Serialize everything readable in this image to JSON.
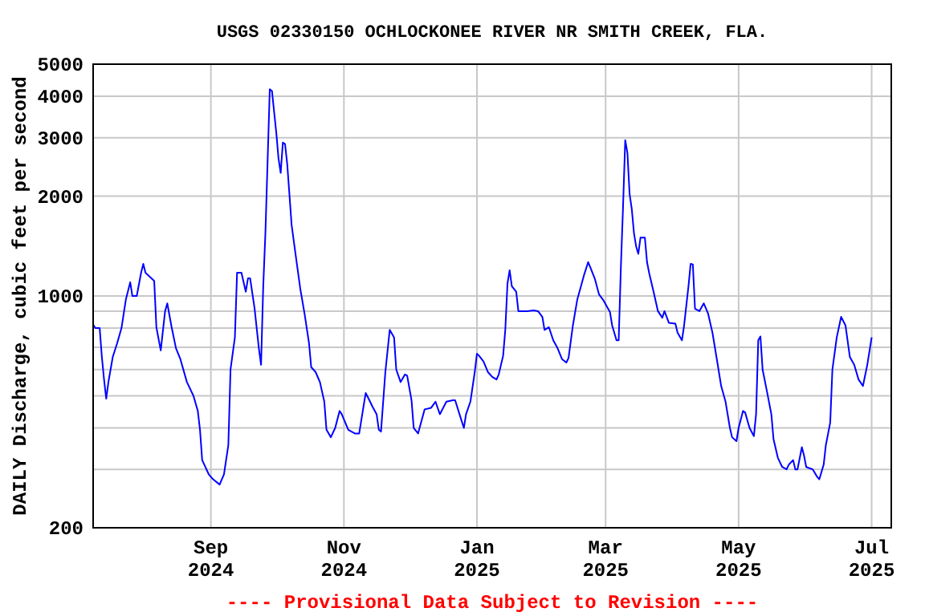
{
  "chart_data": {
    "type": "line",
    "title": "USGS 02330150 OCHLOCKONEE RIVER NR SMITH CREEK, FLA.",
    "ylabel": "DAILY Discharge, cubic feet per second",
    "annotations": [
      "---- Provisional Data Subject to Revision ----"
    ],
    "log": "y",
    "grid": true,
    "marker": "none",
    "line_style": "solid",
    "xlim": [
      "2024-07-09",
      "2025-07-10"
    ],
    "xticks": [
      {
        "value": "2024-09-01",
        "label": "Sep\n2024"
      },
      {
        "value": "2024-11-01",
        "label": "Nov\n2024"
      },
      {
        "value": "2025-01-01",
        "label": "Jan\n2025"
      },
      {
        "value": "2025-03-01",
        "label": "Mar\n2025"
      },
      {
        "value": "2025-05-01",
        "label": "May\n2025"
      },
      {
        "value": "2025-07-01",
        "label": "Jul\n2025"
      }
    ],
    "ylim": [
      200,
      5000
    ],
    "yticks": [
      200,
      {
        "value": 300,
        "label": null
      },
      {
        "value": 400,
        "label": null
      },
      {
        "value": 500,
        "label": null
      },
      {
        "value": 600,
        "label": null
      },
      {
        "value": 700,
        "label": null
      },
      {
        "value": 800,
        "label": null
      },
      {
        "value": 900,
        "label": null
      },
      1000,
      2000,
      3000,
      4000,
      5000
    ],
    "series": [
      {
        "color": "#0000ff",
        "x": [
          "2024-07-09",
          "2024-07-10",
          "2024-07-12",
          "2024-07-13",
          "2024-07-14",
          "2024-07-15",
          "2024-07-16",
          "2024-07-18",
          "2024-07-20",
          "2024-07-22",
          "2024-07-24",
          "2024-07-26",
          "2024-07-27",
          "2024-07-29",
          "2024-07-31",
          "2024-08-01",
          "2024-08-02",
          "2024-08-06",
          "2024-08-07",
          "2024-08-09",
          "2024-08-11",
          "2024-08-12",
          "2024-08-14",
          "2024-08-16",
          "2024-08-18",
          "2024-08-21",
          "2024-08-24",
          "2024-08-26",
          "2024-08-27",
          "2024-08-28",
          "2024-08-31",
          "2024-09-02",
          "2024-09-05",
          "2024-09-07",
          "2024-09-09",
          "2024-09-10",
          "2024-09-12",
          "2024-09-13",
          "2024-09-15",
          "2024-09-17",
          "2024-09-18",
          "2024-09-19",
          "2024-09-21",
          "2024-09-23",
          "2024-09-24",
          "2024-09-25",
          "2024-09-26",
          "2024-09-27",
          "2024-09-28",
          "2024-09-29",
          "2024-10-01",
          "2024-10-02",
          "2024-10-03",
          "2024-10-04",
          "2024-10-05",
          "2024-10-06",
          "2024-10-07",
          "2024-10-08",
          "2024-10-10",
          "2024-10-12",
          "2024-10-14",
          "2024-10-16",
          "2024-10-17",
          "2024-10-19",
          "2024-10-21",
          "2024-10-23",
          "2024-10-24",
          "2024-10-26",
          "2024-10-28",
          "2024-10-30",
          "2024-10-31",
          "2024-11-03",
          "2024-11-06",
          "2024-11-08",
          "2024-11-10",
          "2024-11-11",
          "2024-11-13",
          "2024-11-14",
          "2024-11-16",
          "2024-11-17",
          "2024-11-18",
          "2024-11-20",
          "2024-11-22",
          "2024-11-24",
          "2024-11-25",
          "2024-11-27",
          "2024-11-29",
          "2024-11-30",
          "2024-12-02",
          "2024-12-03",
          "2024-12-05",
          "2024-12-07",
          "2024-12-08",
          "2024-12-11",
          "2024-12-13",
          "2024-12-15",
          "2024-12-18",
          "2024-12-21",
          "2024-12-22",
          "2024-12-24",
          "2024-12-26",
          "2024-12-27",
          "2024-12-29",
          "2024-12-31",
          "2025-01-01",
          "2025-01-02",
          "2025-01-04",
          "2025-01-06",
          "2025-01-08",
          "2025-01-10",
          "2025-01-11",
          "2025-01-13",
          "2025-01-14",
          "2025-01-15",
          "2025-01-16",
          "2025-01-17",
          "2025-01-19",
          "2025-01-20",
          "2025-01-22",
          "2025-01-24",
          "2025-01-27",
          "2025-01-29",
          "2025-01-31",
          "2025-02-01",
          "2025-02-03",
          "2025-02-05",
          "2025-02-07",
          "2025-02-09",
          "2025-02-11",
          "2025-02-12",
          "2025-02-14",
          "2025-02-16",
          "2025-02-17",
          "2025-02-19",
          "2025-02-21",
          "2025-02-22",
          "2025-02-24",
          "2025-02-26",
          "2025-02-28",
          "2025-03-03",
          "2025-03-04",
          "2025-03-06",
          "2025-03-07",
          "2025-03-08",
          "2025-03-09",
          "2025-03-10",
          "2025-03-11",
          "2025-03-12",
          "2025-03-13",
          "2025-03-14",
          "2025-03-15",
          "2025-03-16",
          "2025-03-17",
          "2025-03-19",
          "2025-03-20",
          "2025-03-21",
          "2025-03-23",
          "2025-03-25",
          "2025-03-27",
          "2025-03-28",
          "2025-03-30",
          "2025-04-02",
          "2025-04-03",
          "2025-04-05",
          "2025-04-06",
          "2025-04-08",
          "2025-04-09",
          "2025-04-10",
          "2025-04-11",
          "2025-04-13",
          "2025-04-15",
          "2025-04-17",
          "2025-04-19",
          "2025-04-21",
          "2025-04-23",
          "2025-04-25",
          "2025-04-27",
          "2025-04-28",
          "2025-04-30",
          "2025-05-01",
          "2025-05-03",
          "2025-05-04",
          "2025-05-06",
          "2025-05-08",
          "2025-05-09",
          "2025-05-10",
          "2025-05-11",
          "2025-05-12",
          "2025-05-14",
          "2025-05-16",
          "2025-05-17",
          "2025-05-19",
          "2025-05-21",
          "2025-05-23",
          "2025-05-24",
          "2025-05-26",
          "2025-05-27",
          "2025-05-28",
          "2025-05-30",
          "2025-05-31",
          "2025-06-01",
          "2025-06-04",
          "2025-06-06",
          "2025-06-07",
          "2025-06-09",
          "2025-06-10",
          "2025-06-12",
          "2025-06-13",
          "2025-06-15",
          "2025-06-17",
          "2025-06-19",
          "2025-06-21",
          "2025-06-23",
          "2025-06-25",
          "2025-06-27",
          "2025-06-29",
          "2025-07-01"
        ],
        "values": [
          820,
          800,
          800,
          655,
          560,
          490,
          550,
          655,
          720,
          800,
          975,
          1100,
          1000,
          1000,
          1175,
          1250,
          1175,
          1110,
          805,
          685,
          900,
          950,
          805,
          695,
          645,
          550,
          500,
          450,
          395,
          320,
          290,
          280,
          270,
          290,
          355,
          600,
          750,
          1175,
          1175,
          1030,
          1130,
          1130,
          920,
          695,
          620,
          1070,
          1550,
          2550,
          4200,
          4150,
          3100,
          2600,
          2350,
          2900,
          2870,
          2500,
          2030,
          1640,
          1310,
          1050,
          880,
          720,
          610,
          590,
          550,
          480,
          395,
          375,
          400,
          450,
          440,
          395,
          385,
          385,
          465,
          510,
          480,
          465,
          440,
          395,
          390,
          590,
          790,
          750,
          600,
          550,
          580,
          575,
          485,
          400,
          385,
          430,
          455,
          460,
          480,
          440,
          480,
          485,
          485,
          440,
          400,
          440,
          480,
          590,
          670,
          660,
          635,
          590,
          570,
          560,
          580,
          660,
          790,
          1090,
          1195,
          1070,
          1030,
          900,
          900,
          900,
          905,
          900,
          865,
          790,
          805,
          735,
          695,
          645,
          630,
          650,
          815,
          975,
          1030,
          1150,
          1265,
          1220,
          1130,
          1010,
          970,
          895,
          815,
          735,
          735,
          1220,
          1860,
          2950,
          2700,
          2030,
          1830,
          1550,
          1410,
          1340,
          1500,
          1500,
          1265,
          1170,
          1030,
          900,
          860,
          900,
          830,
          825,
          775,
          735,
          815,
          1070,
          1250,
          1245,
          915,
          900,
          950,
          885,
          775,
          645,
          535,
          480,
          400,
          375,
          365,
          400,
          450,
          445,
          400,
          378,
          440,
          735,
          755,
          600,
          515,
          440,
          370,
          325,
          305,
          300,
          310,
          320,
          300,
          300,
          350,
          330,
          305,
          300,
          285,
          280,
          310,
          355,
          415,
          600,
          750,
          865,
          815,
          655,
          620,
          560,
          535,
          620,
          750
        ]
      }
    ]
  }
}
